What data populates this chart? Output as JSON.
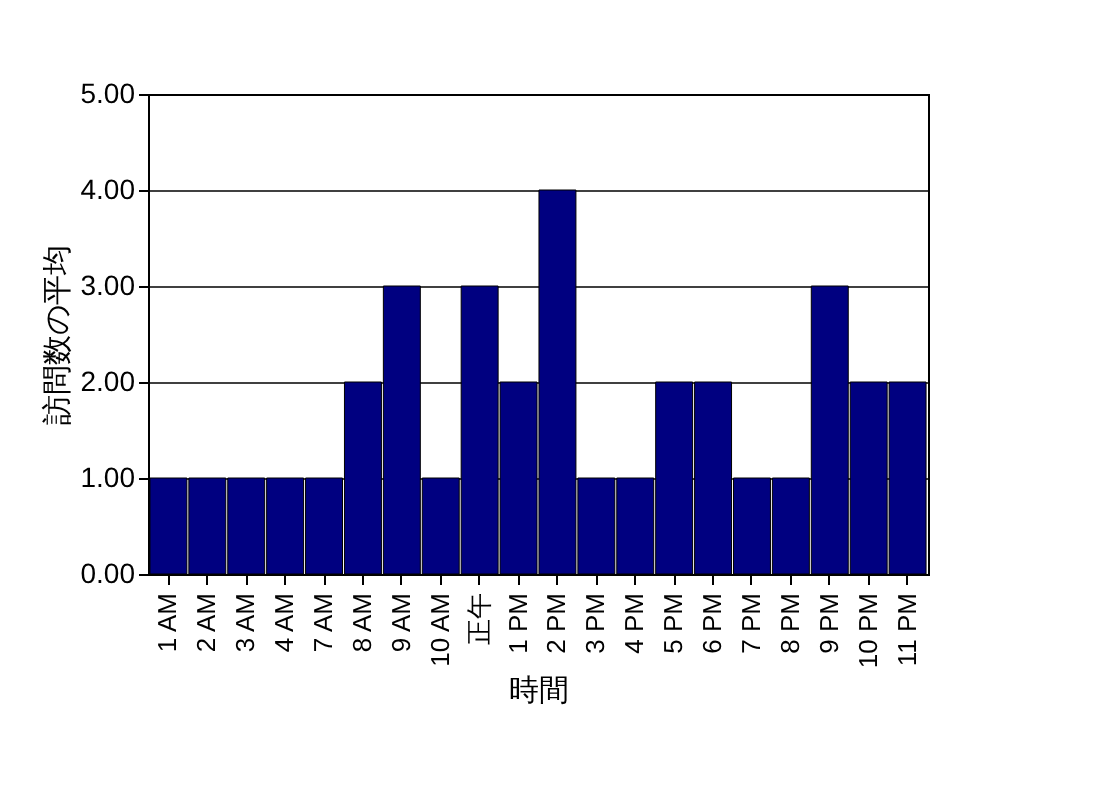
{
  "chart_data": {
    "type": "bar",
    "xlabel": "時間",
    "ylabel": "訪問数の平均",
    "categories": [
      "1 AM",
      "2 AM",
      "3 AM",
      "4 AM",
      "7 AM",
      "8 AM",
      "9 AM",
      "10 AM",
      "正午",
      "1 PM",
      "2 PM",
      "3 PM",
      "4 PM",
      "5 PM",
      "6 PM",
      "7 PM",
      "8 PM",
      "9 PM",
      "10 PM",
      "11 PM"
    ],
    "values": [
      1,
      1,
      1,
      1,
      1,
      2,
      3,
      1,
      3,
      2,
      4,
      1,
      1,
      2,
      2,
      1,
      1,
      3,
      2,
      2
    ],
    "color": "#000080",
    "ylim": [
      0,
      5
    ],
    "yticks": [
      {
        "value": 0,
        "label": "0.00"
      },
      {
        "value": 1,
        "label": "1.00"
      },
      {
        "value": 2,
        "label": "2.00"
      },
      {
        "value": 3,
        "label": "3.00"
      },
      {
        "value": 4,
        "label": "4.00"
      },
      {
        "value": 5,
        "label": "5.00"
      }
    ],
    "grid": "y"
  }
}
